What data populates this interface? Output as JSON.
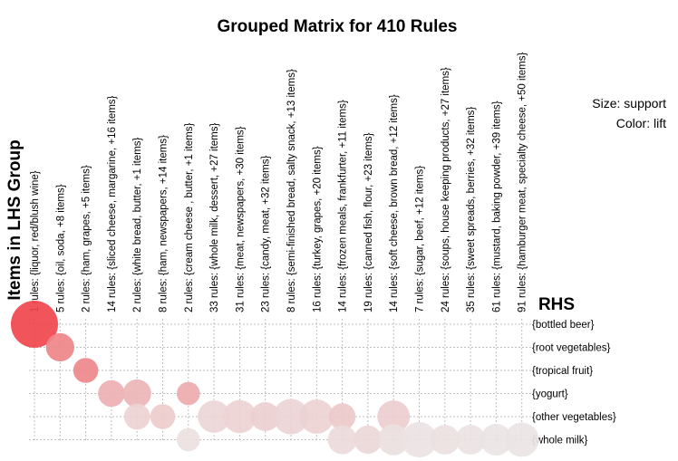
{
  "chart_data": {
    "type": "scatter",
    "title": "Grouped Matrix for 410 Rules",
    "ylabel": "Items in LHS Group",
    "rhs_title": "RHS",
    "legend": {
      "size": "Size: support",
      "color": "Color: lift"
    },
    "lhs_groups": [
      "1 rules: {liquor, red/blush wine}",
      "5 rules: {oil, soda, +8 items}",
      "2 rules: {ham, grapes, +5 items}",
      "14 rules: {sliced cheese, margarine, +16 items}",
      "2 rules: {white bread, butter, +1 items}",
      "8 rules: {ham, newspapers, +14 items}",
      "2 rules: {cream cheese , butter, +1 items}",
      "33 rules: {whole milk, dessert, +27 items}",
      "31 rules: {meat, newspapers, +30 items}",
      "23 rules: {candy, meat, +32 items}",
      "8 rules: {semi-finished bread, salty snack, +13 items}",
      "16 rules: {turkey, grapes, +20 items}",
      "14 rules: {frozen meals, frankfurter, +11 items}",
      "19 rules: {canned fish, flour, +23 items}",
      "14 rules: {soft cheese, brown bread, +12 items}",
      "7 rules: {sugar, beef, +12 items}",
      "24 rules: {soups, house keeping products, +27 items}",
      "35 rules: {sweet spreads, berries, +32 items}",
      "61 rules: {mustard, baking powder, +39 items}",
      "91 rules: {hamburger meat, specialty cheese, +50 items}"
    ],
    "rhs_items": [
      "{bottled beer}",
      "{root vegetables}",
      "{tropical fruit}",
      "{yogurt}",
      "{other vegetables}",
      "{whole milk}"
    ],
    "points": [
      {
        "lhs": 0,
        "rhs": 0,
        "size": 1.0,
        "lift": 1.0
      },
      {
        "lhs": 1,
        "rhs": 1,
        "size": 0.3,
        "lift": 0.62
      },
      {
        "lhs": 2,
        "rhs": 2,
        "size": 0.22,
        "lift": 0.6
      },
      {
        "lhs": 3,
        "rhs": 3,
        "size": 0.26,
        "lift": 0.35
      },
      {
        "lhs": 4,
        "rhs": 3,
        "size": 0.3,
        "lift": 0.32
      },
      {
        "lhs": 6,
        "rhs": 3,
        "size": 0.18,
        "lift": 0.38
      },
      {
        "lhs": 4,
        "rhs": 4,
        "size": 0.24,
        "lift": 0.15
      },
      {
        "lhs": 5,
        "rhs": 4,
        "size": 0.22,
        "lift": 0.18
      },
      {
        "lhs": 7,
        "rhs": 4,
        "size": 0.42,
        "lift": 0.12
      },
      {
        "lhs": 8,
        "rhs": 4,
        "size": 0.44,
        "lift": 0.14
      },
      {
        "lhs": 9,
        "rhs": 4,
        "size": 0.32,
        "lift": 0.16
      },
      {
        "lhs": 10,
        "rhs": 4,
        "size": 0.52,
        "lift": 0.13
      },
      {
        "lhs": 11,
        "rhs": 4,
        "size": 0.48,
        "lift": 0.15
      },
      {
        "lhs": 12,
        "rhs": 4,
        "size": 0.26,
        "lift": 0.2
      },
      {
        "lhs": 14,
        "rhs": 4,
        "size": 0.42,
        "lift": 0.17
      },
      {
        "lhs": 6,
        "rhs": 5,
        "size": 0.18,
        "lift": 0.05
      },
      {
        "lhs": 12,
        "rhs": 5,
        "size": 0.32,
        "lift": 0.09
      },
      {
        "lhs": 13,
        "rhs": 5,
        "size": 0.3,
        "lift": 0.11
      },
      {
        "lhs": 14,
        "rhs": 5,
        "size": 0.38,
        "lift": 0.06
      },
      {
        "lhs": 15,
        "rhs": 5,
        "size": 0.52,
        "lift": 0.04
      },
      {
        "lhs": 16,
        "rhs": 5,
        "size": 0.34,
        "lift": 0.05
      },
      {
        "lhs": 17,
        "rhs": 5,
        "size": 0.34,
        "lift": 0.04
      },
      {
        "lhs": 18,
        "rhs": 5,
        "size": 0.4,
        "lift": 0.03
      },
      {
        "lhs": 19,
        "rhs": 5,
        "size": 0.48,
        "lift": 0.03
      }
    ],
    "grid": true,
    "colors": {
      "high_lift": "#f0474d",
      "low_lift": "#ece9e9",
      "grid": "#bfbfbf"
    }
  }
}
